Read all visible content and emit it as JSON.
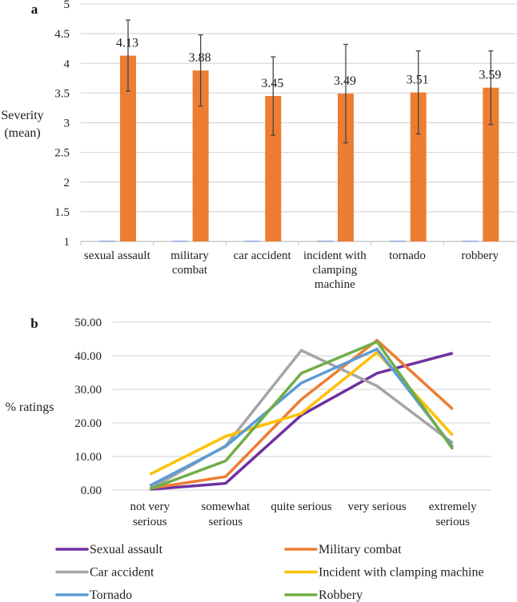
{
  "chart_data": [
    {
      "type": "bar",
      "panel_label": "a",
      "ylabel": "Severity\n(mean)",
      "ylim": [
        1,
        5
      ],
      "yticks": [
        "1",
        "1.5",
        "2",
        "2.5",
        "3",
        "3.5",
        "4",
        "4.5",
        "5"
      ],
      "grid": true,
      "categories": [
        "sexual assault",
        "military\ncombat",
        "car accident",
        "incident with\nclamping\nmachine",
        "tornado",
        "robbery"
      ],
      "series": [
        {
          "values": [
            1,
            1,
            1,
            1,
            1,
            1
          ],
          "color": "#8faadc"
        },
        {
          "values": [
            4.13,
            3.88,
            3.45,
            3.49,
            3.51,
            3.59
          ],
          "color": "#ed7d31",
          "error": [
            0.6,
            0.6,
            0.66,
            0.83,
            0.7,
            0.62
          ],
          "data_labels": [
            "4.13",
            "3.88",
            "3.45",
            "3.49",
            "3.51",
            "3.59"
          ]
        }
      ]
    },
    {
      "type": "line",
      "panel_label": "b",
      "ylabel": "% ratings",
      "ylim": [
        0,
        50
      ],
      "yticks": [
        "0.00",
        "10.00",
        "20.00",
        "30.00",
        "40.00",
        "50.00"
      ],
      "grid": true,
      "legend_placement": "bottom",
      "categories": [
        "not very\nserious",
        "somewhat\nserious",
        "quite serious",
        "very serious",
        "extremely\nserious"
      ],
      "series": [
        {
          "name": "Sexual assault",
          "color": "#7030a0",
          "values": [
            0.2,
            2.0,
            22.3,
            34.8,
            40.8
          ]
        },
        {
          "name": "Military combat",
          "color": "#ed7d31",
          "values": [
            0.5,
            4.0,
            27.0,
            44.6,
            24.1
          ]
        },
        {
          "name": "Car accident",
          "color": "#a5a5a5",
          "values": [
            0.3,
            13.2,
            41.6,
            31.0,
            14.0
          ]
        },
        {
          "name": "Incident with clamping machine",
          "color": "#ffc000",
          "values": [
            4.7,
            16.0,
            22.8,
            41.0,
            16.3
          ]
        },
        {
          "name": "Tornado",
          "color": "#5b9bd5",
          "values": [
            1.3,
            13.0,
            31.9,
            42.0,
            12.8
          ]
        },
        {
          "name": "Robbery",
          "color": "#70ad47",
          "values": [
            0.3,
            8.7,
            34.8,
            44.2,
            12.2
          ]
        }
      ]
    }
  ]
}
